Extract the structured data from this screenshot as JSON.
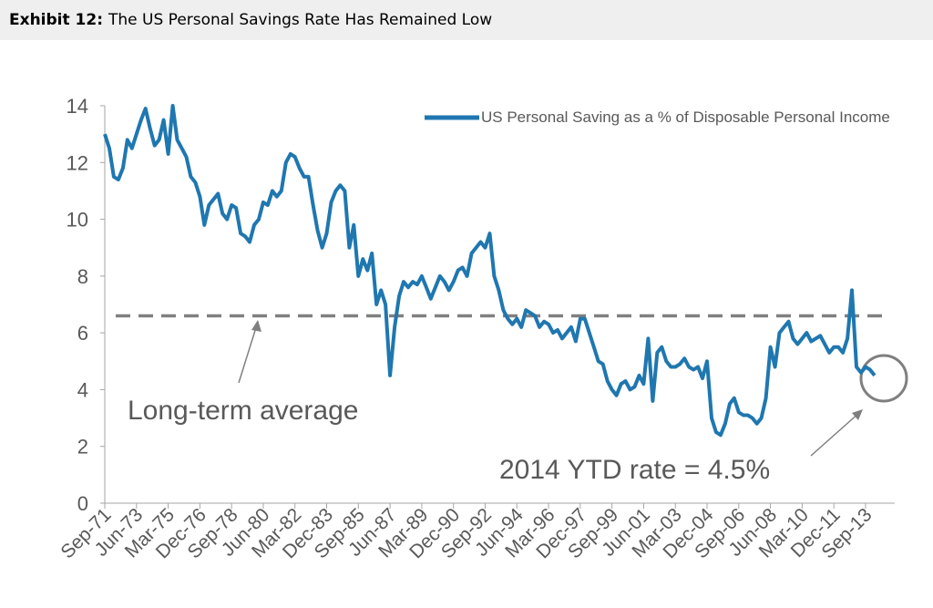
{
  "header": {
    "exhibit": "Exhibit 12:",
    "title": "The US Personal Savings Rate Has Remained Low"
  },
  "chart_data": {
    "type": "line",
    "series": [
      {
        "name": "US Personal Saving as a % of Disposable Personal Income",
        "color": "#1f77b0",
        "values": [
          13.0,
          12.5,
          11.5,
          11.4,
          11.8,
          12.8,
          12.5,
          13.0,
          13.5,
          13.9,
          13.2,
          12.6,
          12.8,
          13.5,
          12.3,
          14.0,
          12.8,
          12.5,
          12.2,
          11.5,
          11.3,
          10.8,
          9.8,
          10.5,
          10.7,
          10.9,
          10.2,
          10.0,
          10.5,
          10.4,
          9.5,
          9.4,
          9.2,
          9.8,
          10.0,
          10.6,
          10.5,
          11.0,
          10.8,
          11.0,
          12.0,
          12.3,
          12.2,
          11.8,
          11.5,
          11.5,
          10.5,
          9.6,
          9.0,
          9.5,
          10.6,
          11.0,
          11.2,
          11.0,
          9.0,
          9.8,
          8.0,
          8.6,
          8.2,
          8.8,
          7.0,
          7.5,
          7.0,
          4.5,
          6.2,
          7.3,
          7.8,
          7.6,
          7.8,
          7.7,
          8.0,
          7.6,
          7.2,
          7.6,
          8.0,
          7.8,
          7.5,
          7.8,
          8.2,
          8.3,
          8.0,
          8.8,
          9.0,
          9.2,
          9.0,
          9.5,
          8.0,
          7.5,
          6.8,
          6.5,
          6.3,
          6.5,
          6.2,
          6.8,
          6.7,
          6.6,
          6.2,
          6.4,
          6.3,
          6.0,
          6.1,
          5.8,
          6.0,
          6.2,
          5.7,
          6.5,
          6.5,
          6.0,
          5.5,
          5.0,
          4.9,
          4.3,
          4.0,
          3.8,
          4.2,
          4.3,
          4.0,
          4.1,
          4.5,
          4.2,
          5.8,
          3.6,
          5.3,
          5.5,
          5.0,
          4.8,
          4.8,
          4.9,
          5.1,
          4.8,
          4.7,
          4.8,
          4.4,
          5.0,
          3.0,
          2.5,
          2.4,
          2.8,
          3.5,
          3.7,
          3.2,
          3.1,
          3.1,
          3.0,
          2.8,
          3.0,
          3.7,
          5.5,
          4.8,
          6.0,
          6.2,
          6.4,
          5.8,
          5.6,
          5.8,
          6.0,
          5.7,
          5.8,
          5.9,
          5.6,
          5.3,
          5.5,
          5.5,
          5.3,
          5.8,
          7.5,
          4.8,
          4.6,
          4.8,
          4.7,
          4.5
        ]
      }
    ],
    "categories": [
      "Sep-71",
      null,
      null,
      null,
      null,
      null,
      null,
      "Jun-73",
      null,
      null,
      null,
      null,
      null,
      null,
      "Mar-75",
      null,
      null,
      null,
      null,
      null,
      null,
      "Dec-76",
      null,
      null,
      null,
      null,
      null,
      null,
      "Sep-78",
      null,
      null,
      null,
      null,
      null,
      null,
      "Jun-80",
      null,
      null,
      null,
      null,
      null,
      null,
      "Mar-82",
      null,
      null,
      null,
      null,
      null,
      null,
      "Dec-83",
      null,
      null,
      null,
      null,
      null,
      null,
      "Sep-85",
      null,
      null,
      null,
      null,
      null,
      null,
      "Jun-87",
      null,
      null,
      null,
      null,
      null,
      null,
      "Mar-89",
      null,
      null,
      null,
      null,
      null,
      null,
      "Dec-90",
      null,
      null,
      null,
      null,
      null,
      null,
      "Sep-92",
      null,
      null,
      null,
      null,
      null,
      null,
      "Jun-94",
      null,
      null,
      null,
      null,
      null,
      null,
      "Mar-96",
      null,
      null,
      null,
      null,
      null,
      null,
      "Dec-97",
      null,
      null,
      null,
      null,
      null,
      null,
      "Sep-99",
      null,
      null,
      null,
      null,
      null,
      null,
      "Jun-01",
      null,
      null,
      null,
      null,
      null,
      null,
      "Mar-03",
      null,
      null,
      null,
      null,
      null,
      null,
      "Dec-04",
      null,
      null,
      null,
      null,
      null,
      null,
      "Sep-06",
      null,
      null,
      null,
      null,
      null,
      null,
      "Jun-08",
      null,
      null,
      null,
      null,
      null,
      null,
      "Mar-10",
      null,
      null,
      null,
      null,
      null,
      null,
      "Dec-11",
      null,
      null,
      null,
      null,
      null,
      null,
      "Sep-13",
      null,
      null
    ],
    "ylim": [
      0,
      14
    ],
    "yticks": [
      0,
      2,
      4,
      6,
      8,
      10,
      12,
      14
    ],
    "average": 6.6,
    "average_color": "#808080",
    "annotations": [
      "Long-term average",
      "2014 YTD rate = 4.5%"
    ],
    "legend": "top-right"
  }
}
